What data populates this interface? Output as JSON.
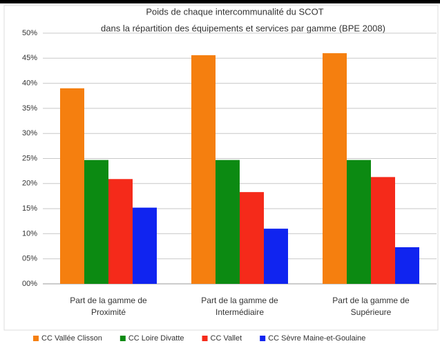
{
  "chart_data": {
    "type": "bar",
    "title": [
      "Poids de chaque intercommunalité du SCOT",
      "dans la répartition des équipements et services par gamme (BPE 2008)"
    ],
    "categories": [
      "Part de la gamme de Proximité",
      "Part de la gamme de Intermédiaire",
      "Part de la gamme de Supérieure"
    ],
    "series": [
      {
        "name": "CC Vallée Clisson",
        "color": "#f57f0f",
        "values": [
          39.0,
          45.6,
          46.0
        ]
      },
      {
        "name": "CC Loire Divatte",
        "color": "#0c8a12",
        "values": [
          24.7,
          24.7,
          24.7
        ]
      },
      {
        "name": "CC Vallet",
        "color": "#f52a1a",
        "values": [
          20.9,
          18.3,
          21.3
        ]
      },
      {
        "name": "CC Sèvre Maine-et-Goulaine",
        "color": "#1024f0",
        "values": [
          15.2,
          11.0,
          7.3
        ]
      }
    ],
    "ylim": [
      0,
      50
    ],
    "yticks": [
      {
        "value": 0,
        "label": "00%"
      },
      {
        "value": 5,
        "label": "05%"
      },
      {
        "value": 10,
        "label": "10%"
      },
      {
        "value": 15,
        "label": "15%"
      },
      {
        "value": 20,
        "label": "20%"
      },
      {
        "value": 25,
        "label": "25%"
      },
      {
        "value": 30,
        "label": "30%"
      },
      {
        "value": 35,
        "label": "35%"
      },
      {
        "value": 40,
        "label": "40%"
      },
      {
        "value": 45,
        "label": "45%"
      },
      {
        "value": 50,
        "label": "50%"
      }
    ],
    "grid": true,
    "legend": "bottom"
  }
}
